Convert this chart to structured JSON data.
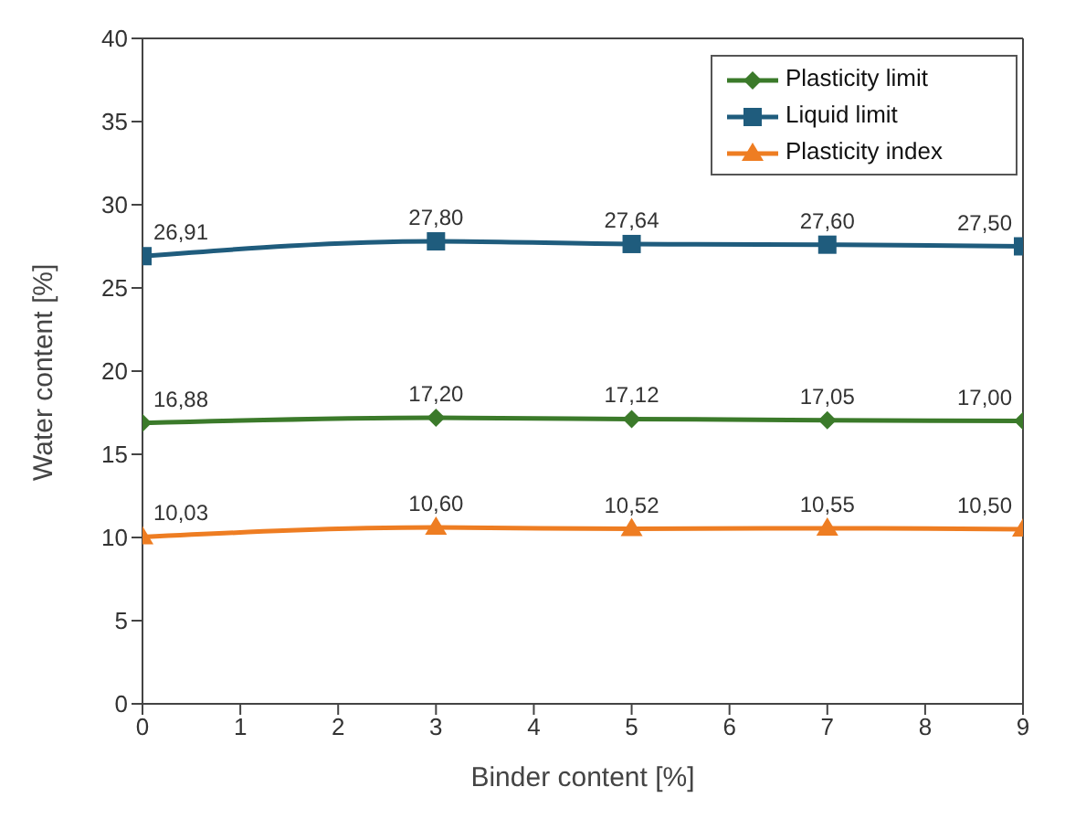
{
  "chart_data": {
    "type": "line",
    "xlabel": "Binder content [%]",
    "ylabel": "Water content [%]",
    "x": [
      0,
      3,
      5,
      7,
      9
    ],
    "xlim": [
      0,
      9
    ],
    "xticks": [
      0,
      1,
      2,
      3,
      4,
      5,
      6,
      7,
      8,
      9
    ],
    "ylim": [
      0,
      40
    ],
    "yticks": [
      0,
      5,
      10,
      15,
      20,
      25,
      30,
      35,
      40
    ],
    "grid": false,
    "legend": "top right",
    "series": [
      {
        "name": "Plasticity limit",
        "color": "#3b7a2a",
        "marker": "diamond",
        "values": [
          16.88,
          17.2,
          17.12,
          17.05,
          17.0
        ],
        "value_labels": [
          "16,88",
          "17,20",
          "17,12",
          "17,05",
          "17,00"
        ]
      },
      {
        "name": "Liquid limit",
        "color": "#1f5c7d",
        "marker": "square",
        "values": [
          26.91,
          27.8,
          27.64,
          27.6,
          27.5
        ],
        "value_labels": [
          "26,91",
          "27,80",
          "27,64",
          "27,60",
          "27,50"
        ]
      },
      {
        "name": "Plasticity index",
        "color": "#ee7d22",
        "marker": "triangle",
        "values": [
          10.03,
          10.6,
          10.52,
          10.55,
          10.5
        ],
        "value_labels": [
          "10,03",
          "10,60",
          "10,52",
          "10,55",
          "10,50"
        ]
      }
    ]
  }
}
